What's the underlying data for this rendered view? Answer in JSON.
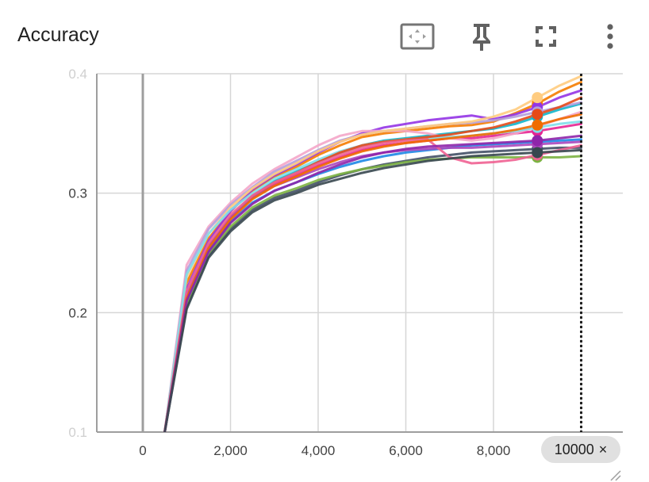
{
  "header": {
    "title": "Accuracy",
    "icons": [
      "fit-to-data-icon",
      "pin-icon",
      "fullscreen-icon",
      "more-vert-icon"
    ]
  },
  "step_chip": {
    "label": "10000",
    "close": "×"
  },
  "colors": {
    "grid": "#d6d6d6",
    "axis": "#9e9e9e",
    "marker_line": "#212121"
  },
  "chart_data": {
    "type": "line",
    "title": "Accuracy",
    "xlabel": "",
    "ylabel": "",
    "xlim": [
      -1050,
      10950
    ],
    "ylim": [
      0.1,
      0.4
    ],
    "x_ticks": [
      0,
      2000,
      4000,
      6000,
      8000
    ],
    "x_tick_labels": [
      "0",
      "2,000",
      "4,000",
      "6,000",
      "8,000"
    ],
    "y_ticks": [
      0.1,
      0.2,
      0.3,
      0.4
    ],
    "y_tick_labels": [
      "0.1",
      "0.2",
      "0.3",
      "0.4"
    ],
    "grid": true,
    "legend": "none",
    "selected_step": 10000,
    "x": [
      500,
      1000,
      1500,
      2000,
      2500,
      3000,
      3500,
      4000,
      4500,
      5000,
      5500,
      6000,
      6500,
      7000,
      7500,
      8000,
      8500,
      9000,
      9500,
      10000
    ],
    "series": [
      {
        "color": "#f57c00",
        "values": [
          0.1,
          0.225,
          0.262,
          0.285,
          0.302,
          0.314,
          0.322,
          0.332,
          0.34,
          0.347,
          0.35,
          0.352,
          0.354,
          0.356,
          0.357,
          0.36,
          0.367,
          0.375,
          0.385,
          0.393
        ]
      },
      {
        "color": "#9334e6",
        "values": [
          0.1,
          0.22,
          0.26,
          0.285,
          0.303,
          0.315,
          0.324,
          0.334,
          0.343,
          0.35,
          0.355,
          0.358,
          0.361,
          0.363,
          0.365,
          0.362,
          0.366,
          0.372,
          0.38,
          0.386
        ]
      },
      {
        "color": "#12b5cb",
        "values": [
          0.1,
          0.215,
          0.255,
          0.28,
          0.298,
          0.31,
          0.318,
          0.326,
          0.334,
          0.34,
          0.344,
          0.346,
          0.348,
          0.35,
          0.352,
          0.354,
          0.358,
          0.364,
          0.37,
          0.375
        ]
      },
      {
        "color": "#e52592",
        "values": [
          0.1,
          0.212,
          0.254,
          0.279,
          0.296,
          0.307,
          0.315,
          0.323,
          0.33,
          0.336,
          0.34,
          0.342,
          0.344,
          0.346,
          0.346,
          0.348,
          0.35,
          0.352,
          0.355,
          0.358
        ]
      },
      {
        "color": "#425066",
        "values": [
          0.1,
          0.205,
          0.248,
          0.27,
          0.286,
          0.296,
          0.302,
          0.309,
          0.315,
          0.32,
          0.324,
          0.327,
          0.33,
          0.332,
          0.334,
          0.335,
          0.336,
          0.337,
          0.338,
          0.338
        ]
      },
      {
        "color": "#7cb342",
        "values": [
          0.1,
          0.208,
          0.25,
          0.272,
          0.288,
          0.298,
          0.304,
          0.311,
          0.316,
          0.32,
          0.323,
          0.326,
          0.328,
          0.329,
          0.33,
          0.33,
          0.33,
          0.33,
          0.33,
          0.331
        ]
      },
      {
        "color": "#f4a6c9",
        "values": [
          0.1,
          0.24,
          0.272,
          0.292,
          0.308,
          0.32,
          0.33,
          0.34,
          0.348,
          0.352,
          0.352,
          0.352,
          0.35,
          0.346,
          0.344,
          0.346,
          0.35,
          0.356,
          0.362,
          0.368
        ]
      },
      {
        "color": "#b39ddb",
        "values": [
          0.1,
          0.235,
          0.27,
          0.29,
          0.305,
          0.318,
          0.327,
          0.336,
          0.344,
          0.349,
          0.352,
          0.354,
          0.356,
          0.358,
          0.359,
          0.361,
          0.364,
          0.368,
          0.372,
          0.376
        ]
      },
      {
        "color": "#ffcc80",
        "values": [
          0.1,
          0.23,
          0.266,
          0.288,
          0.304,
          0.316,
          0.325,
          0.335,
          0.343,
          0.349,
          0.352,
          0.354,
          0.356,
          0.358,
          0.36,
          0.364,
          0.37,
          0.38,
          0.39,
          0.398
        ]
      },
      {
        "color": "#80deea",
        "values": [
          0.1,
          0.232,
          0.266,
          0.286,
          0.3,
          0.312,
          0.32,
          0.328,
          0.335,
          0.34,
          0.343,
          0.345,
          0.346,
          0.347,
          0.348,
          0.35,
          0.352,
          0.355,
          0.358,
          0.36
        ]
      },
      {
        "color": "#1e88e5",
        "values": [
          0.1,
          0.21,
          0.252,
          0.276,
          0.292,
          0.302,
          0.309,
          0.316,
          0.322,
          0.327,
          0.331,
          0.334,
          0.336,
          0.338,
          0.34,
          0.341,
          0.342,
          0.343,
          0.344,
          0.345
        ]
      },
      {
        "color": "#e64a19",
        "values": [
          0.1,
          0.214,
          0.256,
          0.28,
          0.297,
          0.309,
          0.317,
          0.326,
          0.334,
          0.34,
          0.343,
          0.345,
          0.347,
          0.349,
          0.352,
          0.355,
          0.36,
          0.366,
          0.372,
          0.38
        ]
      },
      {
        "color": "#ab47bc",
        "values": [
          0.1,
          0.216,
          0.256,
          0.28,
          0.296,
          0.306,
          0.313,
          0.32,
          0.326,
          0.331,
          0.334,
          0.336,
          0.337,
          0.338,
          0.338,
          0.339,
          0.34,
          0.341,
          0.342,
          0.343
        ]
      },
      {
        "color": "#f06292",
        "values": [
          0.1,
          0.218,
          0.258,
          0.282,
          0.298,
          0.309,
          0.317,
          0.325,
          0.332,
          0.338,
          0.342,
          0.344,
          0.345,
          0.33,
          0.325,
          0.326,
          0.328,
          0.332,
          0.336,
          0.34
        ]
      },
      {
        "color": "#ef6c00",
        "values": [
          0.1,
          0.212,
          0.254,
          0.278,
          0.295,
          0.306,
          0.314,
          0.322,
          0.329,
          0.335,
          0.339,
          0.342,
          0.344,
          0.346,
          0.348,
          0.35,
          0.353,
          0.357,
          0.362,
          0.366
        ]
      },
      {
        "color": "#8e24aa",
        "values": [
          0.1,
          0.21,
          0.251,
          0.275,
          0.291,
          0.302,
          0.309,
          0.317,
          0.324,
          0.33,
          0.334,
          0.337,
          0.339,
          0.34,
          0.341,
          0.342,
          0.343,
          0.344,
          0.346,
          0.348
        ]
      },
      {
        "color": "#37474f",
        "values": [
          0.1,
          0.203,
          0.246,
          0.268,
          0.284,
          0.294,
          0.3,
          0.307,
          0.312,
          0.317,
          0.321,
          0.324,
          0.327,
          0.329,
          0.331,
          0.332,
          0.333,
          0.334,
          0.335,
          0.336
        ]
      }
    ]
  }
}
